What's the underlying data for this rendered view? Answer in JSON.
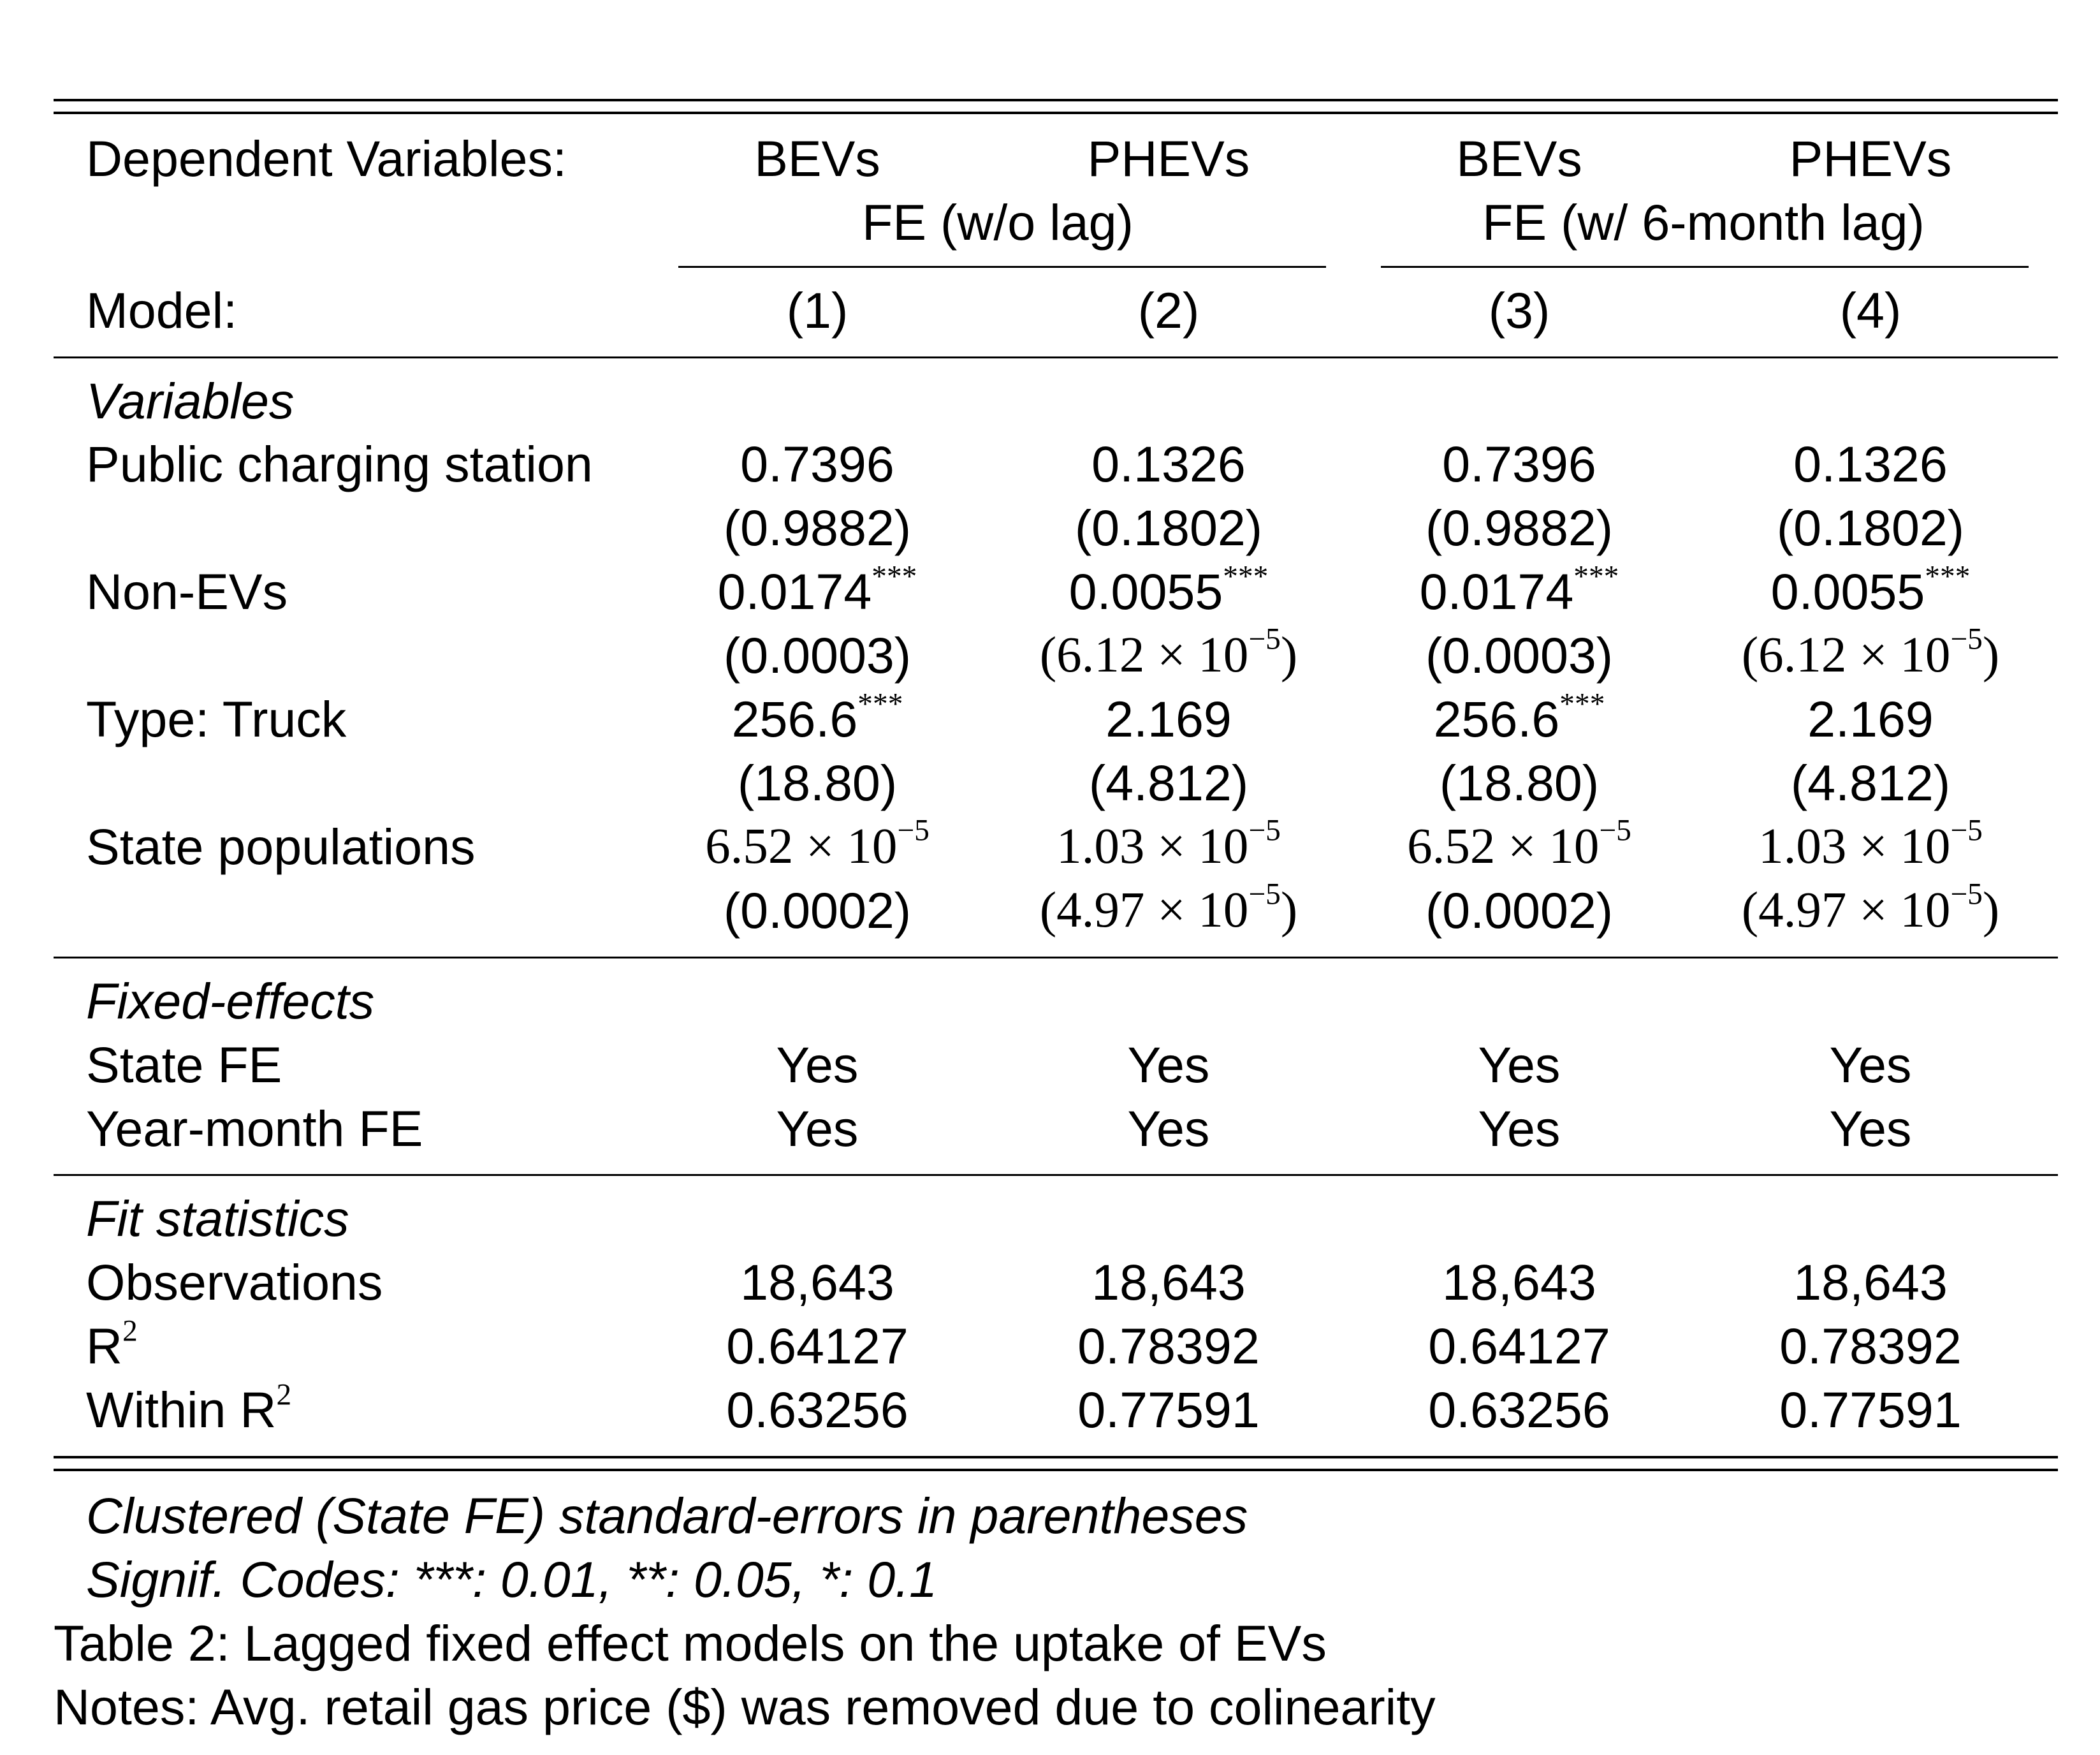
{
  "header": {
    "dep_label": "Dependent Variables:",
    "dep_vars": [
      "BEVs",
      "PHEVs",
      "BEVs",
      "PHEVs"
    ],
    "group1": "FE (w/o lag)",
    "group2": "FE (w/ 6-month lag)",
    "model_label": "Model:",
    "models": [
      "(1)",
      "(2)",
      "(3)",
      "(4)"
    ]
  },
  "sections": {
    "variables": "Variables",
    "fixed_effects": "Fixed-effects",
    "fit": "Fit statistics"
  },
  "variables": [
    {
      "label": "Public charging station",
      "coef": [
        "0.7396",
        "0.1326",
        "0.7396",
        "0.1326"
      ],
      "stars": [
        "",
        "",
        "",
        ""
      ],
      "se": [
        "(0.9882)",
        "(0.1802)",
        "(0.9882)",
        "(0.1802)"
      ]
    },
    {
      "label": "Non-EVs",
      "coef": [
        "0.0174",
        "0.0055",
        "0.0174",
        "0.0055"
      ],
      "stars": [
        "***",
        "***",
        "***",
        "***"
      ],
      "se": [
        "(0.0003)",
        "(6.12 × 10",
        "(0.0003)",
        "(6.12 × 10"
      ],
      "se_exp": [
        "",
        "−5",
        "",
        "−5"
      ],
      "se_close": [
        "",
        ")",
        "",
        ")"
      ]
    },
    {
      "label": "Type: Truck",
      "coef": [
        "256.6",
        "2.169",
        "256.6",
        "2.169"
      ],
      "stars": [
        "***",
        "",
        "***",
        ""
      ],
      "se": [
        "(18.80)",
        "(4.812)",
        "(18.80)",
        "(4.812)"
      ]
    },
    {
      "label": "State populations",
      "coef": [
        "6.52 × 10",
        "1.03 × 10",
        "6.52 × 10",
        "1.03 × 10"
      ],
      "coef_exp": [
        "−5",
        "−5",
        "−5",
        "−5"
      ],
      "se": [
        "(0.0002)",
        "(4.97 × 10",
        "(0.0002)",
        "(4.97 × 10"
      ],
      "se_exp": [
        "",
        "−5",
        "",
        "−5"
      ],
      "se_close": [
        "",
        ")",
        "",
        ")"
      ]
    }
  ],
  "fixed_effects": [
    {
      "label": "State FE",
      "values": [
        "Yes",
        "Yes",
        "Yes",
        "Yes"
      ]
    },
    {
      "label": "Year-month FE",
      "values": [
        "Yes",
        "Yes",
        "Yes",
        "Yes"
      ]
    }
  ],
  "fit": [
    {
      "label": "Observations",
      "values": [
        "18,643",
        "18,643",
        "18,643",
        "18,643"
      ]
    },
    {
      "label": "R",
      "sup": "2",
      "values": [
        "0.64127",
        "0.78392",
        "0.64127",
        "0.78392"
      ]
    },
    {
      "label": "Within R",
      "sup": "2",
      "values": [
        "0.63256",
        "0.77591",
        "0.63256",
        "0.77591"
      ]
    }
  ],
  "notes": {
    "clustered": "Clustered (State FE) standard-errors in parentheses",
    "signif": "Signif. Codes: ***: 0.01, **: 0.05, *: 0.1",
    "caption": "Table 2: Lagged fixed effect models on the uptake of EVs",
    "note": "Notes: Avg. retail gas price ($) was removed due to colinearity"
  }
}
